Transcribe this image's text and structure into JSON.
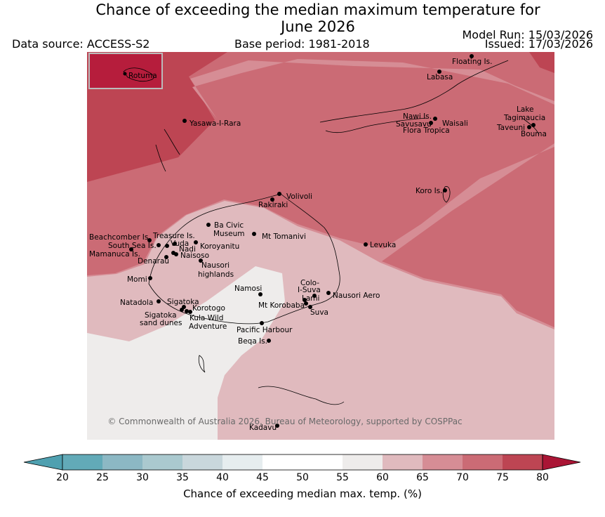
{
  "title_line1": "Chance of exceeding the median maximum temperature for",
  "title_line2": "June 2026",
  "data_source": "Data source: ACCESS-S2",
  "base_period": "Base period: 1981-2018",
  "model_run": "Model Run: 15/03/2026",
  "issued": "Issued: 17/03/2026",
  "copyright": "© Commonwealth of Australia 2026, Bureau of Meteorology, supported by COSPPac",
  "inset_label": "Rotuma",
  "colorbar": {
    "label": "Chance of exceeding median max. temp. (%)",
    "ticks": [
      "20",
      "25",
      "30",
      "35",
      "40",
      "45",
      "50",
      "55",
      "60",
      "65",
      "70",
      "75",
      "80"
    ],
    "colors": [
      "#62aab8",
      "#8cb8c4",
      "#aac9cf",
      "#c9d7dc",
      "#e6edef",
      "#ffffff",
      "#ffffff",
      "#eeeceb",
      "#e0babe",
      "#d68d95",
      "#cb6b75",
      "#bd4553"
    ],
    "under_color": "#4fa0b0",
    "over_color": "#aa1535"
  },
  "places": [
    {
      "name": "Floating Is."
    },
    {
      "name": "Labasa"
    },
    {
      "name": "Yasawa-I-Rara"
    },
    {
      "name": "Nawi Is."
    },
    {
      "name": "Savusavu"
    },
    {
      "name": "Waisali"
    },
    {
      "name": "Flora Tropica"
    },
    {
      "name": "Lake"
    },
    {
      "name": "Tagimaucia"
    },
    {
      "name": "Taveuni"
    },
    {
      "name": "Bouma"
    },
    {
      "name": "Koro Is."
    },
    {
      "name": "Volivoli"
    },
    {
      "name": "Rakiraki"
    },
    {
      "name": "Ba Civic"
    },
    {
      "name": "Museum"
    },
    {
      "name": "Mt Tomanivi"
    },
    {
      "name": "Beachcomber Is."
    },
    {
      "name": "Treasure Is."
    },
    {
      "name": "South Sea Is."
    },
    {
      "name": "Vuda"
    },
    {
      "name": "Koroyanitu"
    },
    {
      "name": "Mamanuca Is."
    },
    {
      "name": "Nadi"
    },
    {
      "name": "Naisoso"
    },
    {
      "name": "Denarau"
    },
    {
      "name": "Levuka"
    },
    {
      "name": "Nausori"
    },
    {
      "name": "highlands"
    },
    {
      "name": "Momi"
    },
    {
      "name": "Namosi"
    },
    {
      "name": "Colo-"
    },
    {
      "name": "I-Suva"
    },
    {
      "name": "Nausori Aero"
    },
    {
      "name": "Lami"
    },
    {
      "name": "Mt Korobaba"
    },
    {
      "name": "Suva"
    },
    {
      "name": "Natadola"
    },
    {
      "name": "Sigatoka"
    },
    {
      "name": "Korotogo"
    },
    {
      "name": "Sigatoka"
    },
    {
      "name": "sand dunes"
    },
    {
      "name": "Kula Wild"
    },
    {
      "name": "Adventure"
    },
    {
      "name": "Pacific Harbour"
    },
    {
      "name": "Beqa Is."
    },
    {
      "name": "Kadavu"
    }
  ]
}
